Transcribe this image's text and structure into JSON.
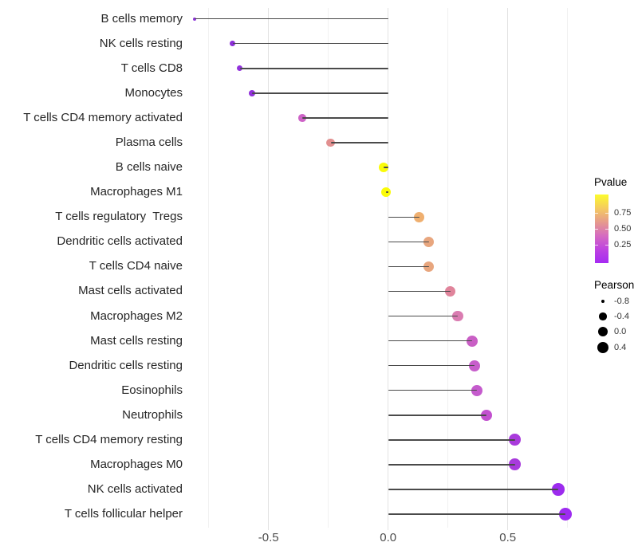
{
  "chart_data": {
    "type": "scatter",
    "variant": "lollipop",
    "orientation": "horizontal",
    "title": "",
    "xlabel": "",
    "ylabel": "",
    "xlim": [
      -0.87,
      0.83
    ],
    "baseline": 0.0,
    "x_ticks": [
      {
        "label": "-0.5",
        "value": -0.5
      },
      {
        "label": "0.0",
        "value": 0.0
      },
      {
        "label": "0.5",
        "value": 0.5
      }
    ],
    "grid": {
      "show": true,
      "step": 0.25,
      "major_values": [
        -0.5,
        0.0,
        0.5
      ],
      "minor_values": [
        -0.75,
        -0.25,
        0.25,
        0.75
      ]
    },
    "points": [
      {
        "category": "B cells memory",
        "pearson": -0.81,
        "color": "#8E34DB"
      },
      {
        "category": "NK cells resting",
        "pearson": -0.65,
        "color": "#8C2FD8"
      },
      {
        "category": "T cells CD8",
        "pearson": -0.62,
        "color": "#9232DC"
      },
      {
        "category": "Monocytes",
        "pearson": -0.57,
        "color": "#9131DA"
      },
      {
        "category": "T cells CD4 memory activated",
        "pearson": -0.36,
        "color": "#CE63C7"
      },
      {
        "category": "Plasma cells",
        "pearson": -0.24,
        "color": "#E29090"
      },
      {
        "category": "B cells naive",
        "pearson": -0.02,
        "color": "#FAFB08"
      },
      {
        "category": "Macrophages M1",
        "pearson": -0.01,
        "color": "#FAFB08"
      },
      {
        "category": "T cells regulatory  Tregs",
        "pearson": 0.13,
        "color": "#EFAF6F"
      },
      {
        "category": "Dendritic cells activated",
        "pearson": 0.17,
        "color": "#E8A67E"
      },
      {
        "category": "T cells CD4 naive",
        "pearson": 0.17,
        "color": "#E8A67E"
      },
      {
        "category": "Mast cells activated",
        "pearson": 0.26,
        "color": "#E0849B"
      },
      {
        "category": "Macrophages M2",
        "pearson": 0.29,
        "color": "#DA7CB1"
      },
      {
        "category": "Mast cells resting",
        "pearson": 0.35,
        "color": "#C95FC5"
      },
      {
        "category": "Dendritic cells resting",
        "pearson": 0.36,
        "color": "#C75ECB"
      },
      {
        "category": "Eosinophils",
        "pearson": 0.37,
        "color": "#C55BCD"
      },
      {
        "category": "Neutrophils",
        "pearson": 0.41,
        "color": "#C250CF"
      },
      {
        "category": "T cells CD4 memory resting",
        "pearson": 0.53,
        "color": "#A93BDC"
      },
      {
        "category": "Macrophages M0",
        "pearson": 0.53,
        "color": "#A83ADC"
      },
      {
        "category": "NK cells activated",
        "pearson": 0.71,
        "color": "#9C2BEE"
      },
      {
        "category": "T cells follicular helper",
        "pearson": 0.74,
        "color": "#9D2BF0"
      }
    ],
    "legend": {
      "pvalue": {
        "title": "Pvalue",
        "range": [
          0,
          1
        ],
        "ticks": [
          {
            "label": "0.75",
            "value": 0.75
          },
          {
            "label": "0.50",
            "value": 0.5
          },
          {
            "label": "0.25",
            "value": 0.25
          }
        ],
        "gradient_top_to_bottom": [
          "#FCFB2D",
          "#F5CB5F",
          "#E69B8C",
          "#D56BC0",
          "#BE43E0",
          "#A62BF2"
        ]
      },
      "pearson": {
        "title": "Pearson",
        "dot_color": "#000000",
        "items": [
          {
            "label": "-0.8",
            "value": -0.8
          },
          {
            "label": "-0.4",
            "value": -0.4
          },
          {
            "label": "0.0",
            "value": 0.0
          },
          {
            "label": "0.4",
            "value": 0.4
          }
        ]
      }
    },
    "colors": {
      "stem": "#4a4a4a",
      "grid_major": "#e2e2e2",
      "grid_minor": "#f1f1f1",
      "axis_text_x": "#4d4d4d",
      "axis_text_y": "#262626",
      "background": "#ffffff"
    }
  }
}
